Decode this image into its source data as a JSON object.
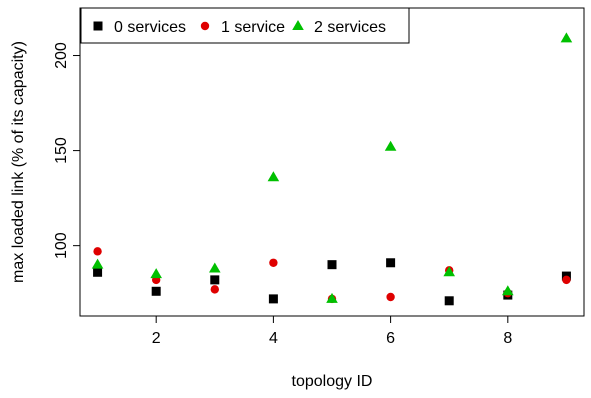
{
  "chart_data": {
    "type": "scatter",
    "title": "",
    "xlabel": "topology ID",
    "ylabel": "max loaded link (% of its capacity)",
    "xlim": [
      0.7,
      9.3
    ],
    "ylim": [
      63,
      225
    ],
    "xticks": [
      2,
      4,
      6,
      8
    ],
    "yticks": [
      100,
      150,
      200
    ],
    "grid": false,
    "legend_position": "top-left",
    "series": [
      {
        "name": "0 services",
        "marker": "square",
        "color": "#000000",
        "x": [
          1,
          2,
          3,
          4,
          5,
          6,
          7,
          8,
          9
        ],
        "y": [
          86,
          76,
          82,
          72,
          90,
          91,
          71,
          74,
          84
        ]
      },
      {
        "name": "1 service",
        "marker": "circle",
        "color": "#df0000",
        "x": [
          1,
          2,
          3,
          4,
          5,
          6,
          7,
          8,
          9
        ],
        "y": [
          97,
          82,
          77,
          91,
          72,
          73,
          87,
          75,
          82
        ]
      },
      {
        "name": "2 services",
        "marker": "triangle",
        "color": "#00c000",
        "x": [
          1,
          2,
          3,
          4,
          5,
          6,
          7,
          8,
          9
        ],
        "y": [
          90,
          85,
          88,
          136,
          72,
          152,
          86,
          76,
          209
        ]
      }
    ]
  }
}
